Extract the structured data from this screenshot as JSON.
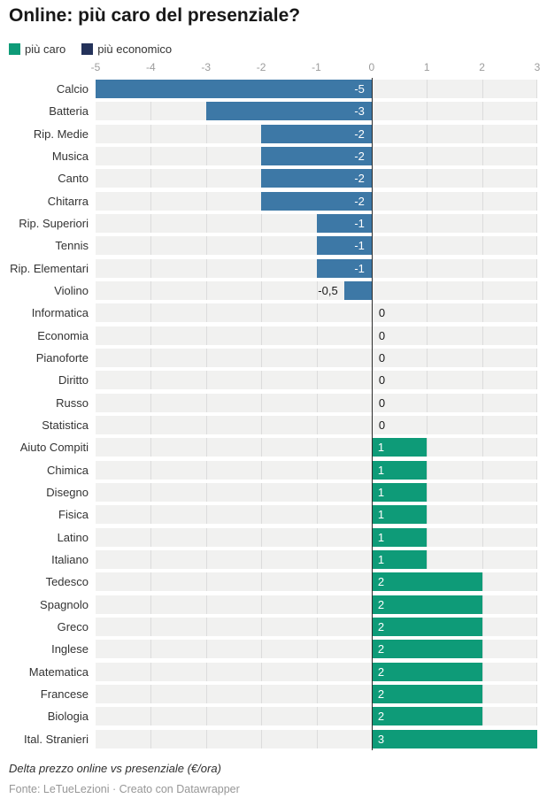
{
  "title": "Online: più caro del presenziale?",
  "legend": [
    {
      "label": "più caro",
      "color": "#0e9b78"
    },
    {
      "label": "più economico",
      "color": "#24325a"
    }
  ],
  "chart_data": {
    "type": "bar",
    "orientation": "horizontal",
    "title": "Online: più caro del presenziale?",
    "xlabel": "Delta prezzo online vs presenziale (€/ora)",
    "ylabel": "",
    "xlim": [
      -5,
      3
    ],
    "x_ticks": [
      -5,
      -4,
      -3,
      -2,
      -1,
      0,
      1,
      2,
      3
    ],
    "grid": true,
    "legend_position": "top",
    "categories": [
      "Calcio",
      "Batteria",
      "Rip. Medie",
      "Musica",
      "Canto",
      "Chitarra",
      "Rip. Superiori",
      "Tennis",
      "Rip. Elementari",
      "Violino",
      "Informatica",
      "Economia",
      "Pianoforte",
      "Diritto",
      "Russo",
      "Statistica",
      "Aiuto Compiti",
      "Chimica",
      "Disegno",
      "Fisica",
      "Latino",
      "Italiano",
      "Tedesco",
      "Spagnolo",
      "Greco",
      "Inglese",
      "Matematica",
      "Francese",
      "Biologia",
      "Ital. Stranieri"
    ],
    "values": [
      -5,
      -3,
      -2,
      -2,
      -2,
      -2,
      -1,
      -1,
      -1,
      -0.5,
      0,
      0,
      0,
      0,
      0,
      0,
      1,
      1,
      1,
      1,
      1,
      1,
      2,
      2,
      2,
      2,
      2,
      2,
      2,
      3
    ],
    "value_labels": [
      "-5",
      "-3",
      "-2",
      "-2",
      "-2",
      "-2",
      "-1",
      "-1",
      "-1",
      "-0,5",
      "0",
      "0",
      "0",
      "0",
      "0",
      "0",
      "1",
      "1",
      "1",
      "1",
      "1",
      "1",
      "2",
      "2",
      "2",
      "2",
      "2",
      "2",
      "2",
      "3"
    ],
    "colors": {
      "negative_bar": "#3d78a6",
      "positive_bar": "#0e9b78",
      "band": "#f1f1f0",
      "gridline": "#dcdcdc",
      "zero_line": "#2d2d2d",
      "tick_label": "#9c9c9c",
      "category_label": "#333333"
    }
  },
  "footer": {
    "note": "Delta prezzo online vs presenziale (€/ora)",
    "source": "Fonte: LeTueLezioni · Creato con Datawrapper"
  }
}
